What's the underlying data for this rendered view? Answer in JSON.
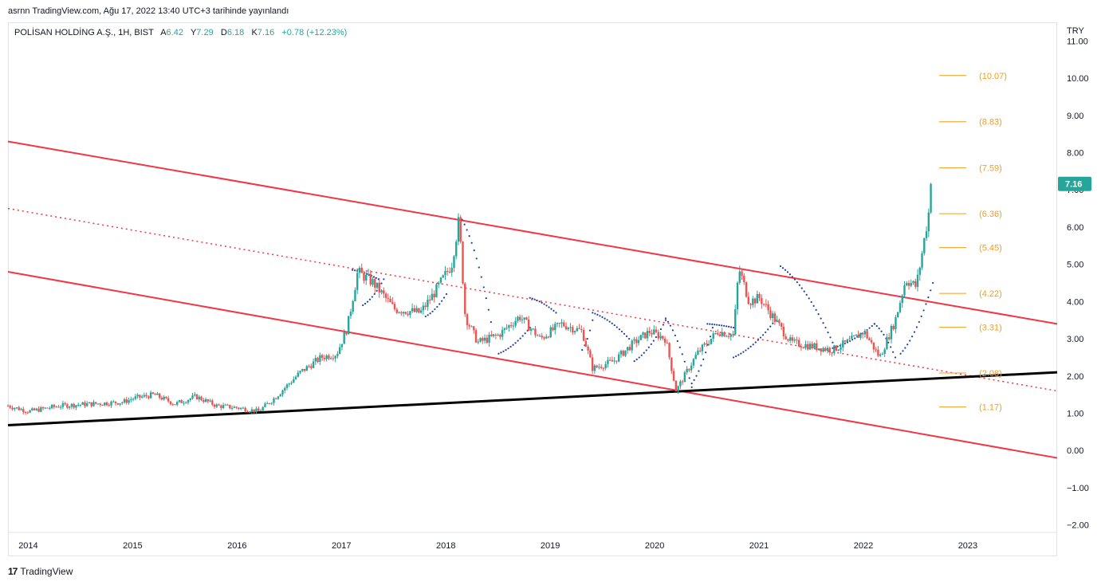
{
  "header": {
    "published": "asrnn TradingView.com, Ağu 17, 2022 13:40 UTC+3 tarihinde yayınlandı"
  },
  "legend": {
    "symbol": "POLİSAN HOLDİNG A.Ş., 1H, BIST",
    "open_label": "A",
    "open": "6.42",
    "high_label": "Y",
    "high": "7.29",
    "low_label": "D",
    "low": "6.18",
    "close_label": "K",
    "close": "7.16",
    "change": "+0.78 (+12.23%)"
  },
  "price_axis": {
    "currency": "TRY",
    "last_price": "7.16"
  },
  "footer": {
    "brand": "TradingView"
  },
  "colors": {
    "up": "#26a69a",
    "down": "#ef5350",
    "channel": "#f23645",
    "support": "#000000",
    "psar": "#1e3fa0",
    "fib": "#f59d1a",
    "grid": "#e0e3eb"
  },
  "chart_data": {
    "type": "candlestick",
    "ylim": [
      -2.2,
      11.5
    ],
    "xlim": [
      2013.8,
      2023.85
    ],
    "yticks": [
      "11.00",
      "10.00",
      "9.00",
      "8.00",
      "7.00",
      "6.00",
      "5.00",
      "4.00",
      "3.00",
      "2.00",
      "1.00",
      "0.00",
      "−1.00",
      "−2.00"
    ],
    "ytick_values": [
      11,
      10,
      9,
      8,
      7,
      6,
      5,
      4,
      3,
      2,
      1,
      0,
      -1,
      -2
    ],
    "xticks": [
      "2014",
      "2015",
      "2016",
      "2017",
      "2018",
      "2019",
      "2020",
      "2021",
      "2022",
      "2023"
    ],
    "xtick_values": [
      2014,
      2015,
      2016,
      2017,
      2018,
      2019,
      2020,
      2021,
      2022,
      2023
    ],
    "price_path": [
      [
        2013.8,
        1.2
      ],
      [
        2014.0,
        1.05
      ],
      [
        2014.3,
        1.2
      ],
      [
        2014.6,
        1.25
      ],
      [
        2014.9,
        1.3
      ],
      [
        2015.0,
        1.4
      ],
      [
        2015.2,
        1.5
      ],
      [
        2015.4,
        1.25
      ],
      [
        2015.6,
        1.45
      ],
      [
        2015.8,
        1.2
      ],
      [
        2016.0,
        1.15
      ],
      [
        2016.2,
        1.05
      ],
      [
        2016.35,
        1.4
      ],
      [
        2016.6,
        2.1
      ],
      [
        2016.8,
        2.5
      ],
      [
        2016.95,
        2.6
      ],
      [
        2017.05,
        3.3
      ],
      [
        2017.15,
        4.8
      ],
      [
        2017.3,
        4.5
      ],
      [
        2017.5,
        3.8
      ],
      [
        2017.75,
        3.7
      ],
      [
        2017.9,
        4.3
      ],
      [
        2018.05,
        5.0
      ],
      [
        2018.12,
        6.2
      ],
      [
        2018.18,
        3.6
      ],
      [
        2018.3,
        2.9
      ],
      [
        2018.5,
        3.1
      ],
      [
        2018.7,
        3.6
      ],
      [
        2018.9,
        3.0
      ],
      [
        2019.1,
        3.4
      ],
      [
        2019.3,
        3.2
      ],
      [
        2019.4,
        2.2
      ],
      [
        2019.6,
        2.4
      ],
      [
        2019.8,
        2.9
      ],
      [
        2019.95,
        3.2
      ],
      [
        2020.1,
        3.0
      ],
      [
        2020.2,
        1.6
      ],
      [
        2020.4,
        2.6
      ],
      [
        2020.6,
        3.2
      ],
      [
        2020.75,
        3.1
      ],
      [
        2020.8,
        4.9
      ],
      [
        2020.9,
        4.0
      ],
      [
        2021.0,
        4.1
      ],
      [
        2021.15,
        3.5
      ],
      [
        2021.3,
        2.9
      ],
      [
        2021.5,
        2.8
      ],
      [
        2021.7,
        2.7
      ],
      [
        2021.9,
        3.0
      ],
      [
        2022.0,
        3.2
      ],
      [
        2022.15,
        2.5
      ],
      [
        2022.3,
        3.5
      ],
      [
        2022.4,
        4.6
      ],
      [
        2022.5,
        4.4
      ],
      [
        2022.55,
        5.2
      ],
      [
        2022.62,
        6.4
      ],
      [
        2022.64,
        7.16
      ]
    ],
    "psar_segments": [
      [
        [
          2017.1,
          4.85
        ],
        [
          2017.35,
          4.6
        ]
      ],
      [
        [
          2017.2,
          3.9
        ],
        [
          2017.4,
          4.6
        ]
      ],
      [
        [
          2017.8,
          3.6
        ],
        [
          2018.0,
          4.2
        ]
      ],
      [
        [
          2018.15,
          6.2
        ],
        [
          2018.45,
          3.1
        ]
      ],
      [
        [
          2018.5,
          2.6
        ],
        [
          2018.8,
          3.3
        ]
      ],
      [
        [
          2018.8,
          4.1
        ],
        [
          2019.05,
          3.7
        ]
      ],
      [
        [
          2019.3,
          2.7
        ],
        [
          2019.4,
          3.5
        ]
      ],
      [
        [
          2019.4,
          3.7
        ],
        [
          2019.75,
          3.0
        ]
      ],
      [
        [
          2019.8,
          2.4
        ],
        [
          2020.1,
          3.5
        ]
      ],
      [
        [
          2020.1,
          3.55
        ],
        [
          2020.35,
          1.7
        ]
      ],
      [
        [
          2020.35,
          1.8
        ],
        [
          2020.55,
          3.3
        ]
      ],
      [
        [
          2020.5,
          3.4
        ],
        [
          2020.75,
          3.3
        ]
      ],
      [
        [
          2020.75,
          2.5
        ],
        [
          2021.15,
          3.5
        ]
      ],
      [
        [
          2021.2,
          4.95
        ],
        [
          2021.7,
          2.9
        ]
      ],
      [
        [
          2021.7,
          2.75
        ],
        [
          2022.1,
          3.4
        ]
      ],
      [
        [
          2022.1,
          3.4
        ],
        [
          2022.3,
          2.5
        ]
      ],
      [
        [
          2022.35,
          2.6
        ],
        [
          2022.66,
          4.5
        ]
      ]
    ],
    "annotations": [
      {
        "type": "channel_upper",
        "from": [
          2013.8,
          8.3
        ],
        "to": [
          2023.85,
          3.4
        ]
      },
      {
        "type": "channel_mid",
        "from": [
          2013.8,
          6.5
        ],
        "to": [
          2023.85,
          1.6
        ]
      },
      {
        "type": "channel_lower",
        "from": [
          2013.8,
          4.8
        ],
        "to": [
          2023.85,
          -0.2
        ]
      },
      {
        "type": "support",
        "from": [
          2013.8,
          0.68
        ],
        "to": [
          2023.85,
          2.1
        ]
      }
    ],
    "fib_levels": [
      {
        "value": 10.07,
        "label": "(10.07)"
      },
      {
        "value": 8.83,
        "label": "(8.83)"
      },
      {
        "value": 7.59,
        "label": "(7.59)"
      },
      {
        "value": 6.36,
        "label": "(6.36)"
      },
      {
        "value": 5.45,
        "label": "(5.45)"
      },
      {
        "value": 4.22,
        "label": "(4.22)"
      },
      {
        "value": 3.31,
        "label": "(3.31)"
      },
      {
        "value": 2.08,
        "label": "(2.08)"
      },
      {
        "value": 1.17,
        "label": "(1.17)"
      }
    ],
    "fib_x_range": [
      2022.72,
      2022.98
    ],
    "last_price": 7.16
  }
}
